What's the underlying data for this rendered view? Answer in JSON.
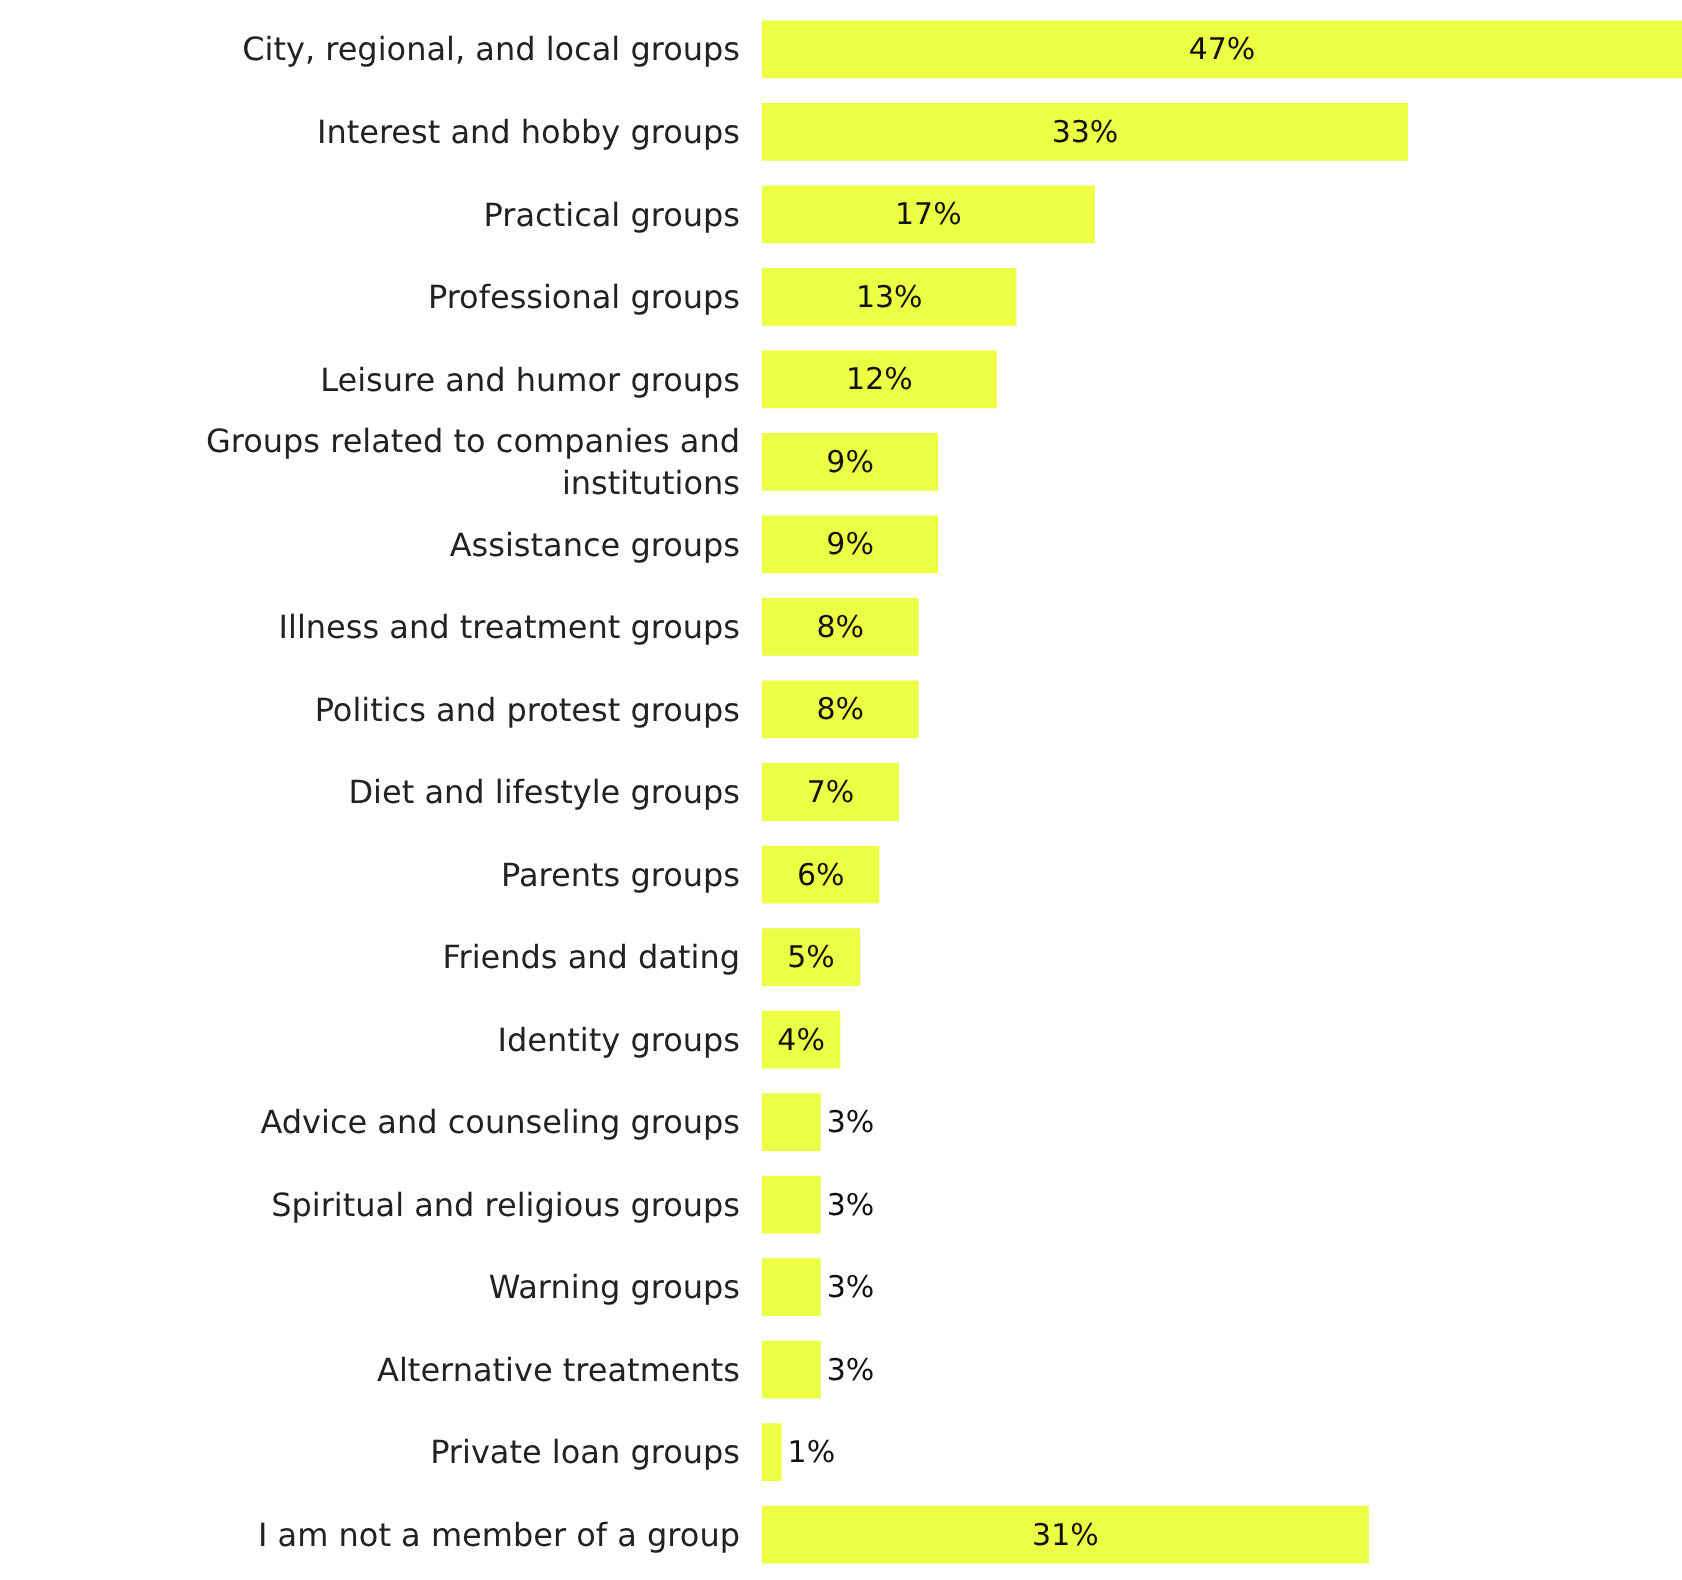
{
  "chart_data": {
    "type": "bar",
    "orientation": "horizontal",
    "categories": [
      "City, regional, and local groups",
      "Interest and hobby groups",
      "Practical groups",
      "Professional groups",
      "Leisure and humor groups",
      "Groups related to companies and institutions",
      "Assistance groups",
      "Illness and treatment groups",
      "Politics and protest groups",
      "Diet and lifestyle groups",
      "Parents groups",
      "Friends and dating",
      "Identity groups",
      "Advice and counseling groups",
      "Spiritual and religious groups",
      "Warning groups",
      "Alternative treatments",
      "Private loan groups",
      "I am not a member of a group"
    ],
    "values": [
      47,
      33,
      17,
      13,
      12,
      9,
      9,
      8,
      8,
      7,
      6,
      5,
      4,
      3,
      3,
      3,
      3,
      1,
      31
    ],
    "value_labels": [
      "47%",
      "33%",
      "17%",
      "13%",
      "12%",
      "9%",
      "9%",
      "8%",
      "8%",
      "7%",
      "6%",
      "5%",
      "4%",
      "3%",
      "3%",
      "3%",
      "3%",
      "1%",
      "31%"
    ],
    "color": "#ecff45",
    "xlim": [
      0,
      47
    ],
    "tick_labels": "y",
    "grid": false,
    "legend": false
  }
}
